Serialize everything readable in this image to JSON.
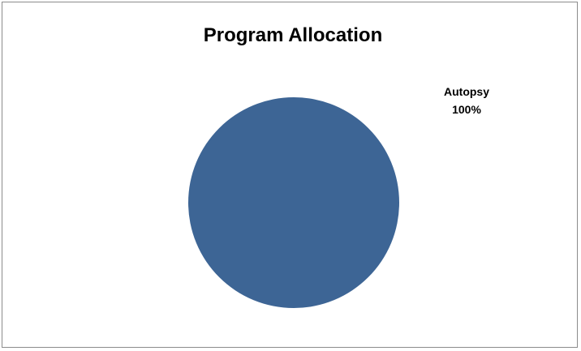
{
  "chart_data": {
    "type": "pie",
    "title": "Program Allocation",
    "categories": [
      "Autopsy"
    ],
    "values": [
      100
    ],
    "percent_labels": [
      "100%"
    ],
    "colors": [
      "#3d6595"
    ],
    "legend": "none",
    "data_labels": "outside-top-right"
  }
}
